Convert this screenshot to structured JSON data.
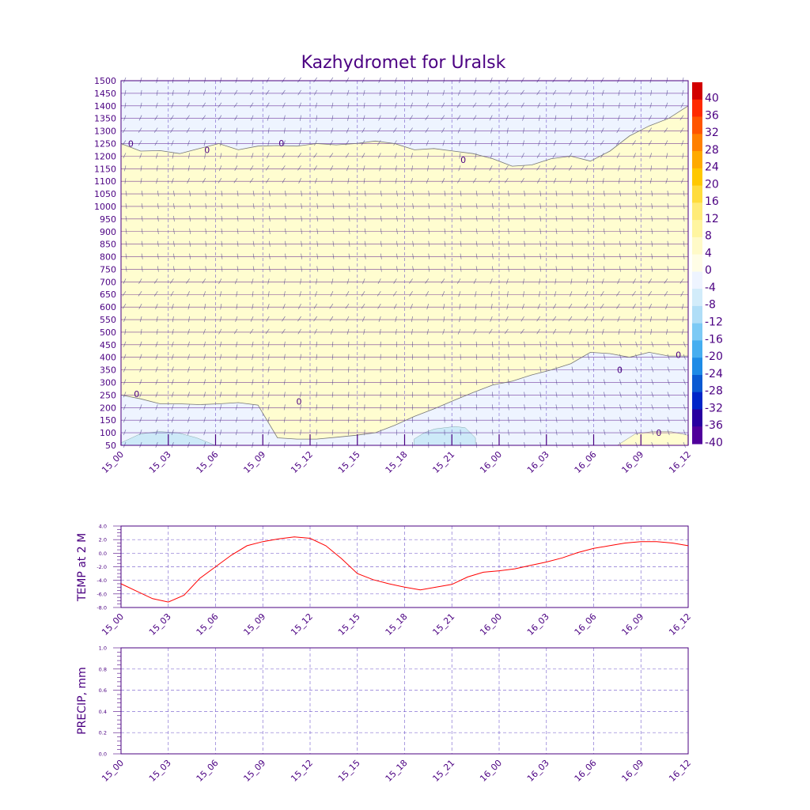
{
  "colors": {
    "frame": "#4b0082",
    "grid": "#6a4fc8",
    "temp_line": "#ff0000",
    "fill_cold_light": "#eef4ff",
    "fill_cold_mid": "#cdeaf8",
    "fill_warm": "#fffdd0"
  },
  "chart_data": [
    {
      "id": "cross-section",
      "type": "heatmap",
      "title": "Kazhydromet for Uralsk",
      "x_ticks": [
        "15_00",
        "15_03",
        "15_06",
        "15_09",
        "15_12",
        "15_15",
        "15_18",
        "15_21",
        "16_00",
        "16_03",
        "16_06",
        "16_09",
        "16_12"
      ],
      "y_ticks": [
        "1500",
        "1450",
        "1400",
        "1350",
        "1300",
        "1250",
        "1200",
        "1150",
        "1100",
        "1050",
        "1000",
        "950",
        "900",
        "850",
        "800",
        "750",
        "700",
        "650",
        "600",
        "550",
        "500",
        "450",
        "400",
        "350",
        "300",
        "250",
        "200",
        "150",
        "100",
        "50"
      ],
      "colorbar": {
        "labels": [
          "40",
          "36",
          "32",
          "28",
          "24",
          "20",
          "16",
          "12",
          "8",
          "4",
          "0",
          "-4",
          "-8",
          "-12",
          "-16",
          "-20",
          "-24",
          "-28",
          "-32",
          "-36",
          "-40"
        ],
        "colors": [
          "#d20000",
          "#ff2a00",
          "#ff5500",
          "#ff8000",
          "#ffaa00",
          "#ffc800",
          "#ffdc3c",
          "#ffeb78",
          "#fff5a0",
          "#fffac8",
          "#fffde6",
          "#eef4ff",
          "#d2ecfa",
          "#b0def7",
          "#7ccaf5",
          "#46aef0",
          "#1e8be6",
          "#0a5ad2",
          "#0026c8",
          "#2800a0",
          "#50009b"
        ]
      },
      "contour_label": "0",
      "zero_isotherm_upper_hpa": [
        1250,
        1220,
        1222,
        1210,
        1230,
        1250,
        1225,
        1240,
        1242,
        1240,
        1250,
        1245,
        1250,
        1260,
        1250,
        1225,
        1230,
        1220,
        1210,
        1190,
        1160,
        1165,
        1190,
        1200,
        1180,
        1220,
        1280,
        1320,
        1350,
        1400
      ],
      "zero_isotherm_lower_hpa": [
        250,
        235,
        215,
        215,
        212,
        215,
        220,
        210,
        80,
        75,
        75,
        82,
        90,
        100,
        130,
        165,
        195,
        228,
        260,
        290,
        305,
        330,
        350,
        375,
        420,
        415,
        400,
        420,
        405,
        405
      ],
      "zero_isotherm_surface_hpa": [
        50,
        50,
        50,
        50,
        50,
        50,
        50,
        50,
        50,
        50,
        50,
        50,
        50,
        50,
        50,
        50,
        50,
        50,
        50,
        50,
        50,
        50,
        50,
        50,
        50,
        60,
        95,
        105,
        105,
        90
      ],
      "cold_pool_1_hpa": [
        60,
        95,
        105,
        100,
        80,
        50
      ],
      "cold_pool_2_hpa": [
        75,
        100,
        115,
        120,
        125,
        120,
        80
      ]
    },
    {
      "id": "temp-2m",
      "type": "line",
      "ylabel": "TEMP at 2 M",
      "ylim": [
        -8.0,
        4.0
      ],
      "y_ticks": [
        "4.0",
        "2.0",
        "0.0",
        "-2.0",
        "-4.0",
        "-6.0",
        "-8.0"
      ],
      "x_ticks": [
        "15_00",
        "15_03",
        "15_06",
        "15_09",
        "15_12",
        "15_15",
        "15_18",
        "15_21",
        "16_00",
        "16_03",
        "16_06",
        "16_09",
        "16_12"
      ],
      "series": [
        {
          "name": "TEMP at 2 M",
          "x_hours": [
            0,
            1,
            2,
            3,
            4,
            5,
            6,
            7,
            8,
            9,
            10,
            11,
            12,
            13,
            14,
            15,
            16,
            17,
            18,
            19,
            20,
            21,
            22,
            23,
            24,
            25,
            26,
            27,
            28,
            29,
            30,
            31,
            32,
            33,
            34,
            35,
            36
          ],
          "values": [
            -4.5,
            -5.6,
            -6.7,
            -7.2,
            -6.2,
            -3.7,
            -2.0,
            -0.3,
            1.1,
            1.7,
            2.1,
            2.4,
            2.2,
            1.1,
            -0.8,
            -3.0,
            -3.9,
            -4.5,
            -5.0,
            -5.4,
            -5.0,
            -4.6,
            -3.5,
            -2.8,
            -2.6,
            -2.3,
            -1.8,
            -1.3,
            -0.7,
            0.1,
            0.7,
            1.1,
            1.5,
            1.7,
            1.7,
            1.5,
            1.1
          ]
        }
      ]
    },
    {
      "id": "precip",
      "type": "line",
      "ylabel": "PRECIP, mm",
      "ylim": [
        0.0,
        1.0
      ],
      "y_ticks": [
        "1.0",
        "0.8",
        "0.6",
        "0.4",
        "0.2",
        "0.0"
      ],
      "x_ticks": [
        "15_00",
        "15_03",
        "15_06",
        "15_09",
        "15_12",
        "15_15",
        "15_18",
        "15_21",
        "16_00",
        "16_03",
        "16_06",
        "16_09",
        "16_12"
      ],
      "series": []
    }
  ]
}
